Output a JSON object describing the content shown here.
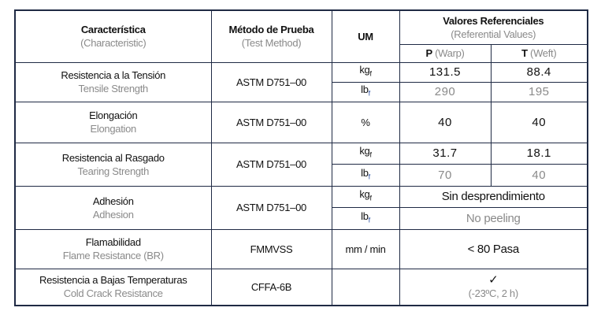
{
  "header": {
    "characteristic": {
      "es": "Característica",
      "en": "(Characteristic)"
    },
    "method": {
      "es": "Método de Prueba",
      "en": "(Test Method)"
    },
    "um": "UM",
    "values": {
      "es": "Valores Referenciales",
      "en": "(Referential Values)"
    },
    "warp": {
      "letter": "P",
      "label": "(Warp)"
    },
    "weft": {
      "letter": "T",
      "label": "(Weft)"
    }
  },
  "rows": [
    {
      "es": "Resistencia a la Tensión",
      "en": "Tensile Strength",
      "method": "ASTM D751–00",
      "units": [
        {
          "text": "kg",
          "sub": "f"
        },
        {
          "text": "lb",
          "sub": "f"
        }
      ],
      "values": [
        [
          131.5,
          88.4
        ],
        [
          290,
          195
        ]
      ]
    },
    {
      "es": "Elongación",
      "en": "Elongation",
      "method": "ASTM D751–00",
      "units": [
        {
          "text": "%"
        }
      ],
      "values": [
        [
          40,
          40
        ]
      ]
    },
    {
      "es": "Resistencia al Rasgado",
      "en": "Tearing Strength",
      "method": "ASTM D751–00",
      "units": [
        {
          "text": "kg",
          "sub": "f"
        },
        {
          "text": "lb",
          "sub": "f"
        }
      ],
      "values": [
        [
          31.7,
          18.1
        ],
        [
          70,
          40
        ]
      ]
    },
    {
      "es": "Adhesión",
      "en": "Adhesion",
      "method": "ASTM D751–00",
      "units": [
        {
          "text": "kg",
          "sub": "f"
        },
        {
          "text": "lb",
          "sub": "f"
        }
      ],
      "result": [
        "Sin desprendimiento",
        "No peeling"
      ]
    },
    {
      "es": "Flamabilidad",
      "en": "Flame Resistance (BR)",
      "method": "FMMVSS",
      "units": [
        {
          "text": "mm / min"
        }
      ],
      "result": [
        "< 80 Pasa"
      ]
    },
    {
      "es": "Resistencia a Bajas Temperaturas",
      "en": "Cold Crack Resistance",
      "method": "CFFA-6B",
      "result": [
        "✓",
        "(-23ºC, 2 h)"
      ]
    }
  ]
}
